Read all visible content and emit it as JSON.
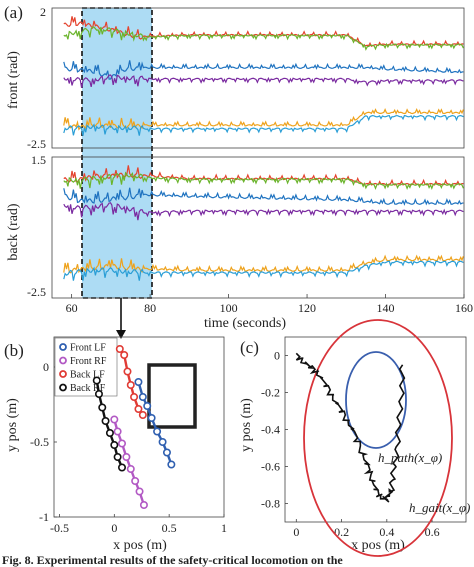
{
  "panels": {
    "a": {
      "label": "(a)",
      "top_ylabel": "front (rad)",
      "bottom_ylabel": "back (rad)",
      "top_ymax": "2",
      "top_ymin": "-2.5",
      "bottom_ymax": "1.5",
      "bottom_ymin": "-2.5",
      "xlabel": "time (seconds)",
      "xticks": [
        "60",
        "80",
        "100",
        "120",
        "140",
        "160"
      ],
      "highlight_range": [
        58,
        77
      ],
      "colors": {
        "red": "#e4432e",
        "green": "#6ab42b",
        "blue": "#1f73c0",
        "purple": "#7a2aa0",
        "orange": "#eea21c",
        "cyan": "#2a9ed6",
        "highlight": "#9fd6f2"
      }
    },
    "b": {
      "label": "(b)",
      "xlabel": "x pos (m)",
      "ylabel": "y pos (m)",
      "xticks": [
        "-0.5",
        "0",
        "0.5",
        "1"
      ],
      "yticks": [
        "0",
        "-0.5",
        "-1"
      ],
      "legend": [
        {
          "label": "Front LF",
          "color": "#2f5fb0"
        },
        {
          "label": "Front RF",
          "color": "#b259c4"
        },
        {
          "label": "Back LF",
          "color": "#e03b35"
        },
        {
          "label": "Back RF",
          "color": "#111111"
        }
      ]
    },
    "c": {
      "label": "(c)",
      "xlabel": "x pos (m)",
      "ylabel": "y pos (m)",
      "xticks": [
        "0",
        "0.2",
        "0.4",
        "0.6"
      ],
      "yticks": [
        "0",
        "-0.2",
        "-0.4",
        "-0.6",
        "-0.8"
      ],
      "path_label": "h_path(x_φ)",
      "gait_label": "h_gait(x_φ)",
      "path_color": "#3a5fae",
      "gait_color": "#d8343a"
    }
  },
  "caption": "Fig. 8.   Experimental results of the safety-critical locomotion on the",
  "chart_data": [
    {
      "type": "line",
      "title": "",
      "xlabel": "time (seconds)",
      "ylabel": "front (rad)",
      "xlim": [
        55,
        160
      ],
      "ylim": [
        -2.5,
        2
      ],
      "series": [
        {
          "x": [
            58,
            62,
            66,
            70,
            74,
            78,
            90,
            110,
            130,
            135,
            140,
            150,
            160
          ],
          "values": [
            1.5,
            1.55,
            1.45,
            1.35,
            1.2,
            1.1,
            1.15,
            1.15,
            1.15,
            0.8,
            0.85,
            0.85,
            0.85
          ]
        },
        {
          "x": [
            58,
            62,
            66,
            70,
            74,
            78,
            90,
            110,
            130,
            135,
            140,
            150,
            160
          ],
          "values": [
            1.1,
            1.2,
            1.3,
            1.25,
            1.15,
            1.05,
            1.1,
            1.1,
            1.1,
            0.75,
            0.8,
            0.8,
            0.8
          ]
        },
        {
          "x": [
            58,
            62,
            66,
            70,
            74,
            78,
            90,
            110,
            130,
            135,
            140,
            150,
            160
          ],
          "values": [
            0.1,
            0.05,
            0.0,
            -0.2,
            0.1,
            0.1,
            0.1,
            0.1,
            0.1,
            0.1,
            0.05,
            0.0,
            -0.05
          ]
        },
        {
          "x": [
            58,
            62,
            66,
            70,
            74,
            78,
            90,
            110,
            130,
            135,
            140,
            150,
            160
          ],
          "values": [
            -0.3,
            -0.35,
            -0.35,
            -0.25,
            -0.3,
            -0.3,
            -0.3,
            -0.3,
            -0.3,
            -0.4,
            -0.35,
            -0.35,
            -0.35
          ]
        },
        {
          "x": [
            58,
            62,
            66,
            70,
            74,
            78,
            90,
            110,
            130,
            135,
            140,
            150,
            160
          ],
          "values": [
            -1.7,
            -1.8,
            -1.7,
            -1.75,
            -1.75,
            -1.75,
            -1.75,
            -1.75,
            -1.75,
            -1.35,
            -1.35,
            -1.35,
            -1.35
          ]
        },
        {
          "x": [
            58,
            62,
            66,
            70,
            74,
            78,
            90,
            110,
            130,
            135,
            140,
            150,
            160
          ],
          "values": [
            -1.9,
            -1.9,
            -1.85,
            -1.9,
            -1.9,
            -1.9,
            -1.9,
            -1.9,
            -1.9,
            -1.5,
            -1.5,
            -1.5,
            -1.5
          ]
        }
      ]
    },
    {
      "type": "line",
      "title": "",
      "xlabel": "time (seconds)",
      "ylabel": "back (rad)",
      "xlim": [
        55,
        160
      ],
      "ylim": [
        -2.5,
        1.5
      ],
      "series": [
        {
          "x": [
            58,
            62,
            66,
            70,
            74,
            78,
            90,
            110,
            130,
            135,
            140,
            150,
            160
          ],
          "values": [
            0.9,
            0.9,
            1.0,
            1.0,
            1.05,
            1.0,
            0.9,
            0.9,
            0.9,
            0.75,
            0.75,
            0.75,
            0.75
          ]
        },
        {
          "x": [
            58,
            62,
            66,
            70,
            74,
            78,
            90,
            110,
            130,
            135,
            140,
            150,
            160
          ],
          "values": [
            0.8,
            0.8,
            0.85,
            0.9,
            0.95,
            0.9,
            0.85,
            0.85,
            0.85,
            0.7,
            0.7,
            0.7,
            0.7
          ]
        },
        {
          "x": [
            58,
            62,
            66,
            70,
            74,
            78,
            90,
            110,
            130,
            135,
            140,
            150,
            160
          ],
          "values": [
            0.45,
            0.3,
            0.3,
            0.35,
            0.4,
            0.45,
            0.4,
            0.35,
            0.3,
            0.25,
            0.2,
            0.2,
            0.2
          ]
        },
        {
          "x": [
            58,
            62,
            66,
            70,
            74,
            78,
            90,
            110,
            130,
            135,
            140,
            150,
            160
          ],
          "values": [
            0.1,
            0.0,
            0.05,
            0.1,
            0.0,
            -0.1,
            -0.05,
            -0.05,
            -0.05,
            -0.05,
            -0.05,
            -0.05,
            -0.05
          ]
        },
        {
          "x": [
            58,
            62,
            66,
            70,
            74,
            78,
            90,
            110,
            130,
            135,
            140,
            150,
            160
          ],
          "values": [
            -1.7,
            -1.65,
            -1.6,
            -1.55,
            -1.6,
            -1.65,
            -1.7,
            -1.7,
            -1.7,
            -1.5,
            -1.4,
            -1.4,
            -1.4
          ]
        },
        {
          "x": [
            58,
            62,
            66,
            70,
            74,
            78,
            90,
            110,
            130,
            135,
            140,
            150,
            160
          ],
          "values": [
            -1.85,
            -1.8,
            -1.75,
            -1.75,
            -1.8,
            -1.8,
            -1.8,
            -1.8,
            -1.8,
            -1.6,
            -1.5,
            -1.5,
            -1.5
          ]
        }
      ]
    },
    {
      "type": "scatter",
      "title": "",
      "xlabel": "x pos (m)",
      "ylabel": "y pos (m)",
      "xlim": [
        -0.55,
        1.0
      ],
      "ylim": [
        -1.0,
        0.2
      ],
      "series": [
        {
          "name": "Front LF",
          "x": [
            0.22,
            0.26,
            0.3,
            0.34,
            0.39,
            0.44,
            0.48,
            0.52
          ],
          "values": [
            -0.1,
            -0.2,
            -0.26,
            -0.34,
            -0.43,
            -0.5,
            -0.57,
            -0.65
          ]
        },
        {
          "name": "Front RF",
          "x": [
            0.0,
            0.03,
            0.07,
            0.11,
            0.15,
            0.19,
            0.23,
            0.27
          ],
          "values": [
            -0.35,
            -0.43,
            -0.51,
            -0.6,
            -0.68,
            -0.76,
            -0.83,
            -0.92
          ]
        },
        {
          "name": "Back LF",
          "x": [
            0.05,
            0.09,
            0.12,
            0.15,
            0.18,
            0.22,
            0.26
          ],
          "values": [
            0.12,
            0.08,
            -0.03,
            -0.12,
            -0.2,
            -0.28,
            -0.32
          ]
        },
        {
          "name": "Back RF",
          "x": [
            -0.16,
            -0.14,
            -0.11,
            -0.08,
            -0.04,
            0.0,
            0.03,
            0.07
          ],
          "values": [
            -0.09,
            -0.18,
            -0.27,
            -0.36,
            -0.44,
            -0.52,
            -0.6,
            -0.67
          ]
        }
      ]
    },
    {
      "type": "line",
      "title": "",
      "xlabel": "x pos (m)",
      "ylabel": "y pos (m)",
      "xlim": [
        -0.05,
        0.75
      ],
      "ylim": [
        -0.9,
        0.1
      ],
      "series": [
        {
          "x": [
            0.0,
            0.05,
            0.1,
            0.15,
            0.2,
            0.25,
            0.3,
            0.33,
            0.36,
            0.4,
            0.42,
            0.44,
            0.46,
            0.47
          ],
          "values": [
            0.0,
            -0.05,
            -0.1,
            -0.2,
            -0.3,
            -0.4,
            -0.55,
            -0.65,
            -0.75,
            -0.78,
            -0.72,
            -0.55,
            -0.3,
            -0.05
          ]
        }
      ]
    }
  ]
}
